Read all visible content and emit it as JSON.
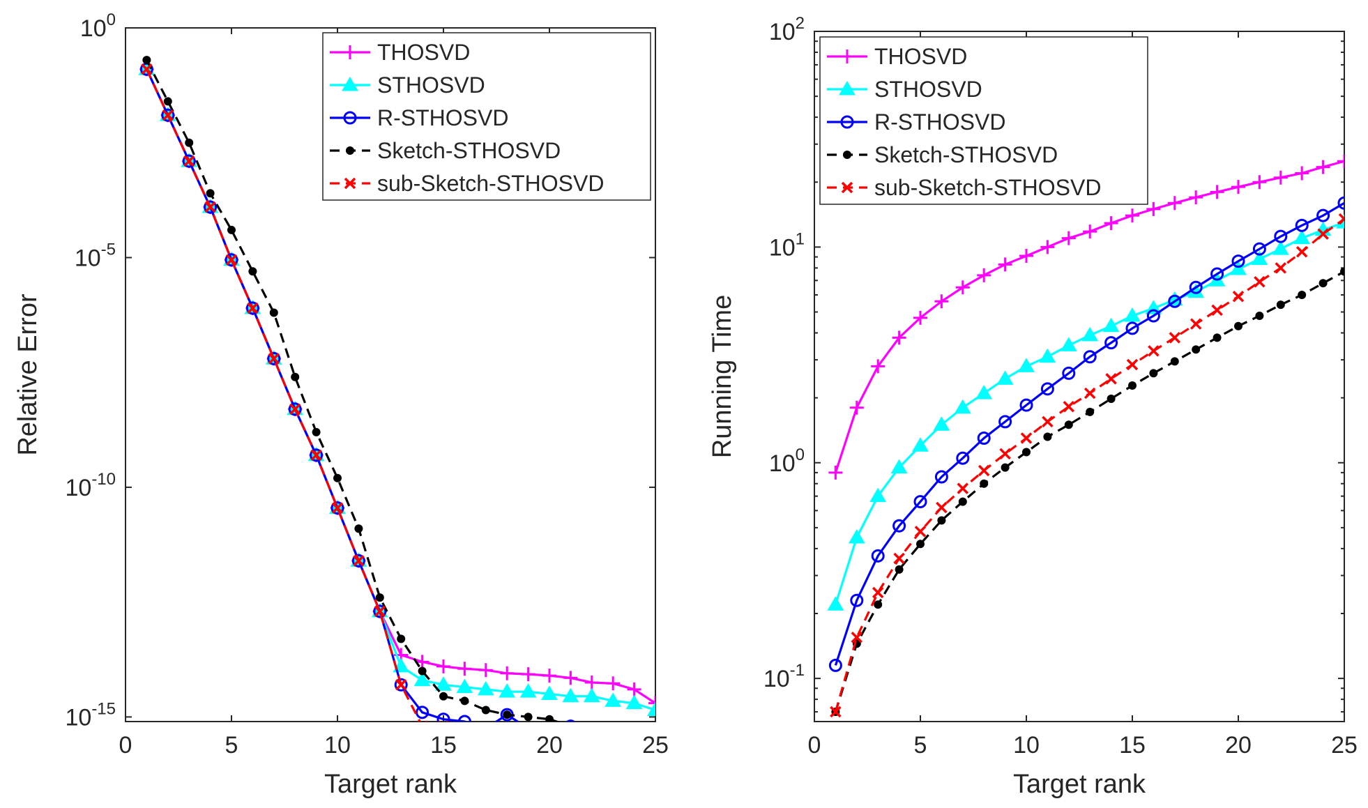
{
  "chart_data": [
    {
      "type": "line",
      "xlabel": "Target rank",
      "ylabel": "Relative Error",
      "xlim": [
        0,
        25
      ],
      "xticks": [
        "0",
        "5",
        "10",
        "15",
        "20",
        "25"
      ],
      "yscale": "log",
      "ylim_exp": [
        -15.1,
        0
      ],
      "yticks": [
        {
          "base": "10",
          "exp": "0",
          "v": 0
        },
        {
          "base": "10",
          "exp": "-5",
          "v": -5
        },
        {
          "base": "10",
          "exp": "-10",
          "v": -10
        },
        {
          "base": "10",
          "exp": "-15",
          "v": -15
        }
      ],
      "legend_position": "top-right",
      "x": [
        1,
        2,
        3,
        4,
        5,
        6,
        7,
        8,
        9,
        10,
        11,
        12,
        13,
        14,
        15,
        16,
        17,
        18,
        19,
        20,
        21,
        22,
        23,
        24,
        25
      ],
      "series": [
        {
          "name": "THOSVD",
          "color": "#ff00ff",
          "marker": "plus",
          "dash": "solid",
          "log10_values": [
            -0.9,
            -1.9,
            -2.9,
            -3.9,
            -5.05,
            -6.1,
            -7.2,
            -8.3,
            -9.3,
            -10.45,
            -11.6,
            -12.7,
            -13.65,
            -13.8,
            -13.9,
            -13.95,
            -13.98,
            -14.05,
            -14.07,
            -14.1,
            -14.15,
            -14.25,
            -14.27,
            -14.4,
            -14.7
          ]
        },
        {
          "name": "STHOSVD",
          "color": "#00ffff",
          "marker": "triangle",
          "dash": "solid",
          "log10_values": [
            -0.9,
            -1.9,
            -2.9,
            -3.9,
            -5.05,
            -6.1,
            -7.2,
            -8.3,
            -9.3,
            -10.45,
            -11.6,
            -12.7,
            -13.9,
            -14.2,
            -14.3,
            -14.35,
            -14.4,
            -14.45,
            -14.45,
            -14.5,
            -14.55,
            -14.55,
            -14.65,
            -14.7,
            -14.85
          ]
        },
        {
          "name": "R-STHOSVD",
          "color": "#0000ff",
          "marker": "circle",
          "dash": "solid",
          "log10_values": [
            -0.9,
            -1.9,
            -2.9,
            -3.9,
            -5.05,
            -6.1,
            -7.2,
            -8.3,
            -9.3,
            -10.45,
            -11.6,
            -12.7,
            -14.3,
            -14.9,
            -15.05,
            -15.1,
            -15.25,
            -14.95,
            -15.25,
            -15.25,
            -15.2,
            -15.25,
            -15.3,
            -15.35,
            -15.25
          ]
        },
        {
          "name": "Sketch-STHOSVD",
          "color": "#000000",
          "marker": "dot",
          "dash": "dashed",
          "log10_values": [
            -0.7,
            -1.6,
            -2.5,
            -3.6,
            -4.4,
            -5.3,
            -6.2,
            -7.6,
            -8.8,
            -9.8,
            -10.9,
            -12.4,
            -13.3,
            -14.0,
            -14.55,
            -14.65,
            -14.85,
            -14.95,
            -15.0,
            -15.05,
            -15.2,
            -15.25,
            -15.3,
            -15.35,
            -15.35
          ]
        },
        {
          "name": "sub-Sketch-STHOSVD",
          "color": "#ff0000",
          "marker": "x",
          "dash": "dashed",
          "log10_values": [
            -0.9,
            -1.9,
            -2.9,
            -3.9,
            -5.05,
            -6.1,
            -7.2,
            -8.3,
            -9.3,
            -10.45,
            -11.6,
            -12.7,
            -14.3,
            -15.2,
            -15.2,
            -15.25,
            -15.35,
            -15.35,
            -15.35,
            -15.3,
            -15.3,
            -15.35,
            -15.35,
            -15.35,
            -15.35
          ]
        }
      ]
    },
    {
      "type": "line",
      "xlabel": "Target rank",
      "ylabel": "Running Time",
      "xlim": [
        0,
        25
      ],
      "xticks": [
        "0",
        "5",
        "10",
        "15",
        "20",
        "25"
      ],
      "yscale": "log",
      "ylim_exp": [
        -1.2,
        2
      ],
      "yticks": [
        {
          "base": "10",
          "exp": "2",
          "v": 2
        },
        {
          "base": "10",
          "exp": "1",
          "v": 1
        },
        {
          "base": "10",
          "exp": "0",
          "v": 0
        },
        {
          "base": "10",
          "exp": "-1",
          "v": -1
        }
      ],
      "legend_position": "top-left",
      "x": [
        1,
        2,
        3,
        4,
        5,
        6,
        7,
        8,
        9,
        10,
        11,
        12,
        13,
        14,
        15,
        16,
        17,
        18,
        19,
        20,
        21,
        22,
        23,
        24,
        25
      ],
      "series": [
        {
          "name": "THOSVD",
          "color": "#ff00ff",
          "marker": "plus",
          "dash": "solid",
          "values": [
            0.9,
            1.8,
            2.8,
            3.8,
            4.7,
            5.6,
            6.5,
            7.4,
            8.3,
            9.1,
            10.0,
            11.0,
            11.8,
            12.9,
            14.0,
            15.0,
            16.0,
            17.0,
            18.0,
            19.0,
            20.0,
            21.0,
            22.0,
            23.5,
            25.0
          ]
        },
        {
          "name": "STHOSVD",
          "color": "#00ffff",
          "marker": "triangle",
          "dash": "solid",
          "values": [
            0.22,
            0.45,
            0.7,
            0.95,
            1.2,
            1.5,
            1.8,
            2.1,
            2.45,
            2.8,
            3.1,
            3.5,
            3.9,
            4.3,
            4.8,
            5.2,
            5.7,
            6.2,
            7.0,
            7.9,
            8.8,
            9.8,
            11.0,
            12.0,
            13.0
          ]
        },
        {
          "name": "R-STHOSVD",
          "color": "#0000ff",
          "marker": "circle",
          "dash": "solid",
          "values": [
            0.115,
            0.23,
            0.37,
            0.51,
            0.66,
            0.86,
            1.05,
            1.3,
            1.55,
            1.85,
            2.2,
            2.6,
            3.1,
            3.6,
            4.2,
            4.8,
            5.6,
            6.5,
            7.5,
            8.6,
            9.8,
            11.2,
            12.6,
            14.0,
            16.0
          ]
        },
        {
          "name": "Sketch-STHOSVD",
          "color": "#000000",
          "marker": "dot",
          "dash": "dashed",
          "values": [
            0.07,
            0.145,
            0.22,
            0.32,
            0.42,
            0.54,
            0.66,
            0.8,
            0.95,
            1.12,
            1.32,
            1.5,
            1.72,
            1.98,
            2.28,
            2.6,
            2.95,
            3.35,
            3.8,
            4.3,
            4.8,
            5.4,
            6.0,
            6.8,
            7.7
          ]
        },
        {
          "name": "sub-Sketch-STHOSVD",
          "color": "#ff0000",
          "marker": "x",
          "dash": "dashed",
          "values": [
            0.07,
            0.155,
            0.25,
            0.36,
            0.48,
            0.62,
            0.76,
            0.92,
            1.1,
            1.3,
            1.55,
            1.82,
            2.1,
            2.45,
            2.85,
            3.3,
            3.8,
            4.4,
            5.1,
            5.9,
            6.9,
            8.0,
            9.5,
            11.5,
            13.5
          ]
        }
      ]
    }
  ]
}
